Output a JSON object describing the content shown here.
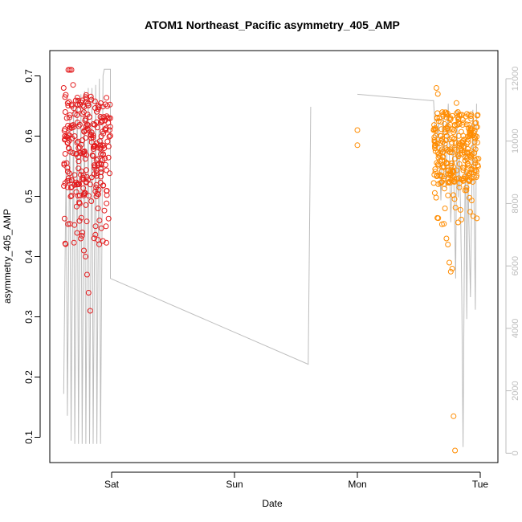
{
  "chart_data": {
    "type": "scatter",
    "title": "ATOM1 Northeast_Pacific asymmetry_405_AMP",
    "xlabel": "Date",
    "ylabel": "asymmetry_405_AMP",
    "x_ticks": [
      "Sat",
      "Sun",
      "Mon",
      "Tue"
    ],
    "x_range_days": [
      -0.44,
      1.07
    ],
    "x_range_note": "days relative to Saturday 00:00",
    "ylim": [
      0.058,
      0.742
    ],
    "y_ticks": [
      0.1,
      0.2,
      0.3,
      0.4,
      0.5,
      0.6,
      0.7
    ],
    "y2_ticks": [
      0,
      2000,
      4000,
      6000,
      8000,
      10000,
      12000
    ],
    "y2lim": [
      -300,
      12900
    ],
    "colors": {
      "series_1": "#e31a1c",
      "series_2": "#ff8c00",
      "trace": "#bdbdbd"
    },
    "series": [
      {
        "color": "#e31a1c",
        "x_range": [
          -0.39,
          -0.01
        ],
        "count": 280,
        "values_sample": [
          0.68,
          0.64,
          0.63,
          0.71,
          0.71,
          0.71,
          0.685,
          0.6,
          0.57,
          0.52,
          0.49,
          0.43,
          0.44,
          0.41,
          0.4,
          0.37,
          0.34,
          0.31,
          0.59,
          0.62,
          0.55,
          0.5,
          0.48,
          0.46,
          0.54,
          0.56,
          0.58,
          0.61,
          0.65,
          0.63
        ]
      },
      {
        "color": "#ff8c00",
        "x_range": [
          1.6,
          1.97
        ],
        "count": 300,
        "values_sample": [
          0.61,
          0.585,
          0.68,
          0.67,
          0.63,
          0.6,
          0.56,
          0.55,
          0.48,
          0.43,
          0.42,
          0.39,
          0.375,
          0.38,
          0.135,
          0.078,
          0.655,
          0.64,
          0.62,
          0.58,
          0.57,
          0.53,
          0.51,
          0.54,
          0.59,
          0.6,
          0.61,
          0.57,
          0.55,
          0.56
        ]
      }
    ],
    "trace": {
      "axis": "y2",
      "description_points": [
        [
          -0.39,
          1900
        ],
        [
          -0.01,
          5500
        ],
        [
          1.0,
          11500
        ],
        [
          1.6,
          11100
        ],
        [
          1.62,
          2900
        ]
      ]
    }
  }
}
